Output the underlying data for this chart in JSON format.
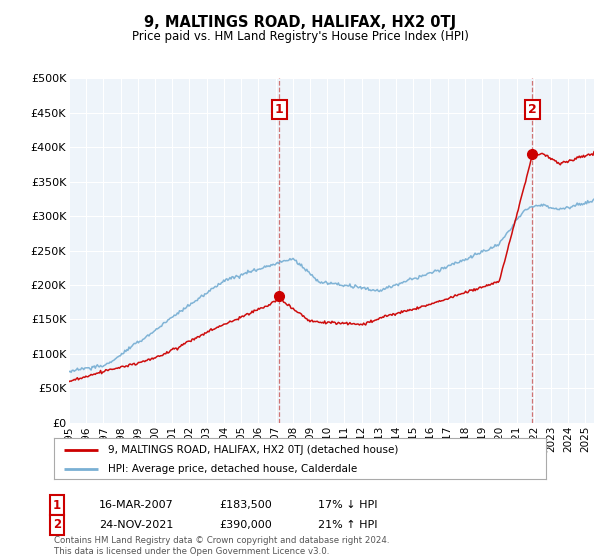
{
  "title": "9, MALTINGS ROAD, HALIFAX, HX2 0TJ",
  "subtitle": "Price paid vs. HM Land Registry's House Price Index (HPI)",
  "legend_line1": "9, MALTINGS ROAD, HALIFAX, HX2 0TJ (detached house)",
  "legend_line2": "HPI: Average price, detached house, Calderdale",
  "point1_label": "1",
  "point1_date": "16-MAR-2007",
  "point1_price": "£183,500",
  "point1_hpi": "17% ↓ HPI",
  "point1_year": 2007.21,
  "point1_value": 183500,
  "point2_label": "2",
  "point2_date": "24-NOV-2021",
  "point2_price": "£390,000",
  "point2_hpi": "21% ↑ HPI",
  "point2_year": 2021.9,
  "point2_value": 390000,
  "ylim": [
    0,
    500000
  ],
  "xlim_start": 1995,
  "xlim_end": 2025.5,
  "yticks": [
    0,
    50000,
    100000,
    150000,
    200000,
    250000,
    300000,
    350000,
    400000,
    450000,
    500000
  ],
  "ytick_labels": [
    "£0",
    "£50K",
    "£100K",
    "£150K",
    "£200K",
    "£250K",
    "£300K",
    "£350K",
    "£400K",
    "£450K",
    "£500K"
  ],
  "xticks": [
    1995,
    1996,
    1997,
    1998,
    1999,
    2000,
    2001,
    2002,
    2003,
    2004,
    2005,
    2006,
    2007,
    2008,
    2009,
    2010,
    2011,
    2012,
    2013,
    2014,
    2015,
    2016,
    2017,
    2018,
    2019,
    2020,
    2021,
    2022,
    2023,
    2024,
    2025
  ],
  "red_color": "#cc0000",
  "blue_color": "#7ab0d4",
  "vline_color": "#cc6666",
  "marker_color": "#cc0000",
  "plot_bg_color": "#eef4fa",
  "footnote": "Contains HM Land Registry data © Crown copyright and database right 2024.\nThis data is licensed under the Open Government Licence v3.0.",
  "background_color": "#ffffff",
  "grid_color": "#ffffff"
}
